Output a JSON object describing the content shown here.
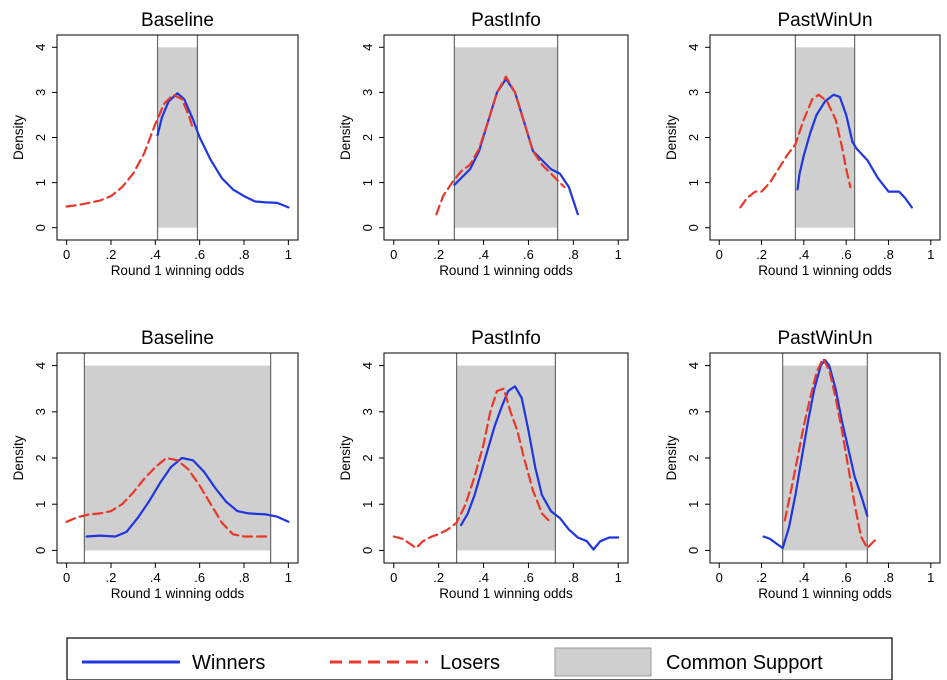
{
  "legend": {
    "winners": "Winners",
    "losers": "Losers",
    "common_support": "Common Support"
  },
  "colors": {
    "winners": "#1f35e0",
    "losers": "#e8382b",
    "common_support": "#cfcfcf",
    "axes": "#000000"
  },
  "chart_data": [
    {
      "type": "line",
      "title": "Baseline",
      "xlabel": "Round 1 winning odds",
      "ylabel": "Density",
      "xlim": [
        0,
        1
      ],
      "ylim": [
        0,
        4
      ],
      "xticks": [
        "0",
        ".2",
        ".4",
        ".6",
        ".8",
        "1"
      ],
      "yticks": [
        "0",
        "1",
        "2",
        "3",
        "4"
      ],
      "common_support": [
        0.41,
        0.59
      ],
      "series": [
        {
          "name": "Winners",
          "style": "solid",
          "points": [
            [
              0.41,
              2.05
            ],
            [
              0.43,
              2.45
            ],
            [
              0.46,
              2.8
            ],
            [
              0.5,
              2.98
            ],
            [
              0.53,
              2.85
            ],
            [
              0.57,
              2.4
            ],
            [
              0.6,
              2.0
            ],
            [
              0.65,
              1.5
            ],
            [
              0.7,
              1.1
            ],
            [
              0.75,
              0.85
            ],
            [
              0.8,
              0.7
            ],
            [
              0.85,
              0.58
            ],
            [
              0.9,
              0.56
            ],
            [
              0.95,
              0.55
            ],
            [
              1.0,
              0.45
            ]
          ]
        },
        {
          "name": "Losers",
          "style": "dashed",
          "points": [
            [
              0.0,
              0.47
            ],
            [
              0.05,
              0.5
            ],
            [
              0.1,
              0.55
            ],
            [
              0.15,
              0.6
            ],
            [
              0.2,
              0.7
            ],
            [
              0.25,
              0.9
            ],
            [
              0.3,
              1.2
            ],
            [
              0.35,
              1.65
            ],
            [
              0.4,
              2.3
            ],
            [
              0.44,
              2.75
            ],
            [
              0.48,
              2.95
            ],
            [
              0.52,
              2.85
            ],
            [
              0.55,
              2.5
            ],
            [
              0.57,
              2.2
            ]
          ]
        }
      ]
    },
    {
      "type": "line",
      "title": "PastInfo",
      "xlabel": "Round 1 winning odds",
      "ylabel": "Density",
      "xlim": [
        0,
        1
      ],
      "ylim": [
        0,
        4
      ],
      "xticks": [
        "0",
        ".2",
        ".4",
        ".6",
        ".8",
        "1"
      ],
      "yticks": [
        "0",
        "1",
        "2",
        "3",
        "4"
      ],
      "common_support": [
        0.27,
        0.73
      ],
      "series": [
        {
          "name": "Winners",
          "style": "solid",
          "points": [
            [
              0.27,
              0.95
            ],
            [
              0.3,
              1.1
            ],
            [
              0.34,
              1.3
            ],
            [
              0.38,
              1.7
            ],
            [
              0.42,
              2.35
            ],
            [
              0.46,
              3.0
            ],
            [
              0.5,
              3.3
            ],
            [
              0.54,
              3.0
            ],
            [
              0.58,
              2.35
            ],
            [
              0.62,
              1.7
            ],
            [
              0.66,
              1.5
            ],
            [
              0.7,
              1.3
            ],
            [
              0.74,
              1.2
            ],
            [
              0.78,
              0.9
            ],
            [
              0.82,
              0.3
            ]
          ]
        },
        {
          "name": "Losers",
          "style": "dashed",
          "points": [
            [
              0.19,
              0.3
            ],
            [
              0.22,
              0.7
            ],
            [
              0.26,
              1.0
            ],
            [
              0.3,
              1.25
            ],
            [
              0.34,
              1.4
            ],
            [
              0.38,
              1.75
            ],
            [
              0.42,
              2.35
            ],
            [
              0.46,
              3.0
            ],
            [
              0.5,
              3.35
            ],
            [
              0.54,
              3.0
            ],
            [
              0.58,
              2.35
            ],
            [
              0.62,
              1.7
            ],
            [
              0.66,
              1.4
            ],
            [
              0.7,
              1.2
            ],
            [
              0.73,
              1.05
            ],
            [
              0.76,
              0.9
            ]
          ]
        }
      ]
    },
    {
      "type": "line",
      "title": "PastWinUn",
      "xlabel": "Round 1 winning odds",
      "ylabel": "Density",
      "xlim": [
        0,
        1
      ],
      "ylim": [
        0,
        4
      ],
      "xticks": [
        "0",
        ".2",
        ".4",
        ".6",
        ".8",
        "1"
      ],
      "yticks": [
        "0",
        "1",
        "2",
        "3",
        "4"
      ],
      "common_support": [
        0.36,
        0.64
      ],
      "series": [
        {
          "name": "Winners",
          "style": "solid",
          "points": [
            [
              0.37,
              0.85
            ],
            [
              0.38,
              1.2
            ],
            [
              0.4,
              1.6
            ],
            [
              0.43,
              2.1
            ],
            [
              0.46,
              2.5
            ],
            [
              0.5,
              2.8
            ],
            [
              0.54,
              2.95
            ],
            [
              0.57,
              2.9
            ],
            [
              0.6,
              2.5
            ],
            [
              0.63,
              1.9
            ],
            [
              0.65,
              1.75
            ],
            [
              0.7,
              1.5
            ],
            [
              0.75,
              1.1
            ],
            [
              0.8,
              0.8
            ],
            [
              0.85,
              0.8
            ],
            [
              0.88,
              0.65
            ],
            [
              0.91,
              0.45
            ]
          ]
        },
        {
          "name": "Losers",
          "style": "dashed",
          "points": [
            [
              0.1,
              0.45
            ],
            [
              0.13,
              0.65
            ],
            [
              0.17,
              0.8
            ],
            [
              0.2,
              0.8
            ],
            [
              0.24,
              1.0
            ],
            [
              0.28,
              1.3
            ],
            [
              0.32,
              1.6
            ],
            [
              0.36,
              1.85
            ],
            [
              0.4,
              2.4
            ],
            [
              0.44,
              2.85
            ],
            [
              0.47,
              2.95
            ],
            [
              0.51,
              2.8
            ],
            [
              0.55,
              2.4
            ],
            [
              0.58,
              1.8
            ],
            [
              0.6,
              1.3
            ],
            [
              0.62,
              0.9
            ]
          ]
        }
      ]
    },
    {
      "type": "line",
      "title": "Baseline",
      "xlabel": "Round 1 winning odds",
      "ylabel": "Density",
      "xlim": [
        0,
        1
      ],
      "ylim": [
        0,
        4
      ],
      "xticks": [
        "0",
        ".2",
        ".4",
        ".6",
        ".8",
        "1"
      ],
      "yticks": [
        "0",
        "1",
        "2",
        "3",
        "4"
      ],
      "common_support": [
        0.08,
        0.92
      ],
      "series": [
        {
          "name": "Winners",
          "style": "solid",
          "points": [
            [
              0.09,
              0.3
            ],
            [
              0.15,
              0.32
            ],
            [
              0.22,
              0.3
            ],
            [
              0.27,
              0.4
            ],
            [
              0.32,
              0.7
            ],
            [
              0.37,
              1.05
            ],
            [
              0.42,
              1.45
            ],
            [
              0.47,
              1.8
            ],
            [
              0.52,
              2.0
            ],
            [
              0.57,
              1.95
            ],
            [
              0.62,
              1.7
            ],
            [
              0.67,
              1.35
            ],
            [
              0.72,
              1.05
            ],
            [
              0.77,
              0.85
            ],
            [
              0.82,
              0.8
            ],
            [
              0.9,
              0.78
            ],
            [
              0.95,
              0.73
            ],
            [
              1.0,
              0.62
            ]
          ]
        },
        {
          "name": "Losers",
          "style": "dashed",
          "points": [
            [
              0.0,
              0.62
            ],
            [
              0.05,
              0.72
            ],
            [
              0.1,
              0.78
            ],
            [
              0.15,
              0.8
            ],
            [
              0.2,
              0.85
            ],
            [
              0.25,
              1.0
            ],
            [
              0.3,
              1.25
            ],
            [
              0.35,
              1.55
            ],
            [
              0.4,
              1.8
            ],
            [
              0.45,
              2.0
            ],
            [
              0.5,
              1.95
            ],
            [
              0.55,
              1.75
            ],
            [
              0.6,
              1.4
            ],
            [
              0.65,
              1.0
            ],
            [
              0.7,
              0.6
            ],
            [
              0.75,
              0.35
            ],
            [
              0.8,
              0.3
            ],
            [
              0.85,
              0.3
            ],
            [
              0.92,
              0.3
            ]
          ]
        }
      ]
    },
    {
      "type": "line",
      "title": "PastInfo",
      "xlabel": "Round 1 winning odds",
      "ylabel": "Density",
      "xlim": [
        0,
        1
      ],
      "ylim": [
        0,
        4
      ],
      "xticks": [
        "0",
        ".2",
        ".4",
        ".6",
        ".8",
        "1"
      ],
      "yticks": [
        "0",
        "1",
        "2",
        "3",
        "4"
      ],
      "common_support": [
        0.28,
        0.72
      ],
      "series": [
        {
          "name": "Winners",
          "style": "solid",
          "points": [
            [
              0.3,
              0.55
            ],
            [
              0.33,
              0.8
            ],
            [
              0.36,
              1.2
            ],
            [
              0.39,
              1.7
            ],
            [
              0.42,
              2.2
            ],
            [
              0.45,
              2.7
            ],
            [
              0.48,
              3.1
            ],
            [
              0.51,
              3.45
            ],
            [
              0.54,
              3.55
            ],
            [
              0.57,
              3.3
            ],
            [
              0.6,
              2.6
            ],
            [
              0.63,
              1.8
            ],
            [
              0.66,
              1.2
            ],
            [
              0.7,
              0.85
            ],
            [
              0.74,
              0.7
            ],
            [
              0.78,
              0.45
            ],
            [
              0.82,
              0.28
            ],
            [
              0.86,
              0.2
            ],
            [
              0.89,
              0.02
            ],
            [
              0.92,
              0.2
            ],
            [
              0.96,
              0.28
            ],
            [
              1.0,
              0.28
            ]
          ]
        },
        {
          "name": "Losers",
          "style": "dashed",
          "points": [
            [
              0.0,
              0.3
            ],
            [
              0.04,
              0.25
            ],
            [
              0.07,
              0.15
            ],
            [
              0.1,
              0.05
            ],
            [
              0.13,
              0.2
            ],
            [
              0.17,
              0.3
            ],
            [
              0.2,
              0.35
            ],
            [
              0.24,
              0.45
            ],
            [
              0.28,
              0.6
            ],
            [
              0.32,
              1.0
            ],
            [
              0.36,
              1.6
            ],
            [
              0.4,
              2.3
            ],
            [
              0.43,
              3.0
            ],
            [
              0.46,
              3.45
            ],
            [
              0.49,
              3.5
            ],
            [
              0.52,
              3.0
            ],
            [
              0.55,
              2.6
            ],
            [
              0.58,
              2.0
            ],
            [
              0.62,
              1.3
            ],
            [
              0.66,
              0.8
            ],
            [
              0.7,
              0.6
            ]
          ]
        }
      ]
    },
    {
      "type": "line",
      "title": "PastWinUn",
      "xlabel": "Round 1 winning odds",
      "ylabel": "Density",
      "xlim": [
        0,
        1
      ],
      "ylim": [
        0,
        4
      ],
      "xticks": [
        "0",
        ".2",
        ".4",
        ".6",
        ".8",
        "1"
      ],
      "yticks": [
        "0",
        "1",
        "2",
        "3",
        "4"
      ],
      "common_support": [
        0.3,
        0.7
      ],
      "series": [
        {
          "name": "Winners",
          "style": "solid",
          "points": [
            [
              0.21,
              0.3
            ],
            [
              0.24,
              0.25
            ],
            [
              0.27,
              0.15
            ],
            [
              0.3,
              0.05
            ],
            [
              0.33,
              0.5
            ],
            [
              0.36,
              1.2
            ],
            [
              0.39,
              2.0
            ],
            [
              0.42,
              2.8
            ],
            [
              0.45,
              3.5
            ],
            [
              0.48,
              4.0
            ],
            [
              0.5,
              4.12
            ],
            [
              0.52,
              4.0
            ],
            [
              0.55,
              3.5
            ],
            [
              0.58,
              2.8
            ],
            [
              0.61,
              2.2
            ],
            [
              0.64,
              1.6
            ],
            [
              0.67,
              1.2
            ],
            [
              0.7,
              0.75
            ]
          ]
        },
        {
          "name": "Losers",
          "style": "dashed",
          "points": [
            [
              0.31,
              0.65
            ],
            [
              0.34,
              1.3
            ],
            [
              0.37,
              2.0
            ],
            [
              0.4,
              2.7
            ],
            [
              0.43,
              3.3
            ],
            [
              0.46,
              3.85
            ],
            [
              0.49,
              4.15
            ],
            [
              0.52,
              3.9
            ],
            [
              0.55,
              3.3
            ],
            [
              0.58,
              2.6
            ],
            [
              0.61,
              1.8
            ],
            [
              0.64,
              1.0
            ],
            [
              0.67,
              0.3
            ],
            [
              0.7,
              0.05
            ],
            [
              0.72,
              0.15
            ],
            [
              0.75,
              0.28
            ]
          ]
        }
      ]
    }
  ]
}
